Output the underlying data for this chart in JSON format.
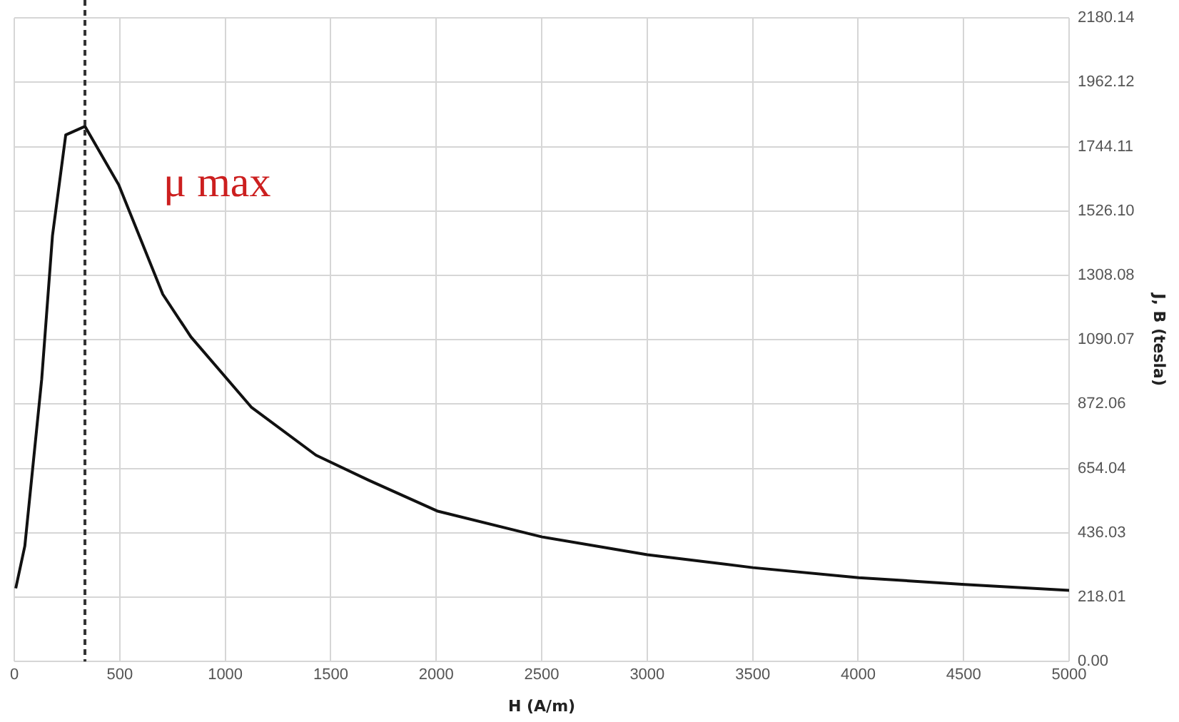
{
  "chart_data": {
    "type": "line",
    "xlabel": "H (A/m)",
    "ylabel": "J, B (tesla)",
    "xlim": [
      0,
      5000
    ],
    "xticks": [
      0,
      500,
      1000,
      1500,
      2000,
      2500,
      3000,
      3500,
      4000,
      4500,
      5000
    ],
    "ylim": [
      0,
      2180.14
    ],
    "yticks": [
      {
        "value": 0,
        "label": "0.00"
      },
      218.01,
      436.03,
      654.04,
      872.06,
      1090.07,
      1308.08,
      {
        "value": 1526.1,
        "label": "1526.10"
      },
      1744.11,
      1962.12,
      2180.14
    ],
    "grid": true,
    "legend": false,
    "marker": "none",
    "line_style": "solid",
    "series": [
      {
        "color": "#111111",
        "x": [
          7,
          50,
          130,
          181,
          244,
          335,
          495,
          704,
          837,
          1123,
          1430,
          1680,
          2004,
          2502,
          3000,
          3501,
          4003,
          4505,
          5000
        ],
        "values": [
          248,
          391,
          956,
          1442,
          1784,
          1813,
          1615,
          1244,
          1100,
          862,
          699,
          614,
          510,
          422,
          362,
          318,
          284,
          261,
          241
        ]
      }
    ],
    "ref_lines": [
      {
        "axis": "x",
        "value": 335,
        "label": "μ max",
        "color": "#333333",
        "line_style": "dashed"
      }
    ]
  }
}
